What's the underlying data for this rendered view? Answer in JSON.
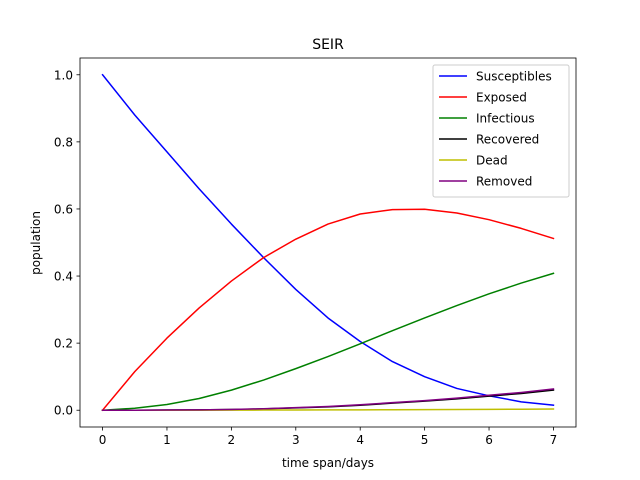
{
  "chart_data": {
    "type": "line",
    "title": "SEIR",
    "xlabel": "time span/days",
    "ylabel": "population",
    "xlim": [
      -0.35,
      7.35
    ],
    "ylim": [
      -0.05,
      1.05
    ],
    "xticks": [
      0,
      1,
      2,
      3,
      4,
      5,
      6,
      7
    ],
    "yticks": [
      0.0,
      0.2,
      0.4,
      0.6,
      0.8,
      1.0
    ],
    "xtick_labels": [
      "0",
      "1",
      "2",
      "3",
      "4",
      "5",
      "6",
      "7"
    ],
    "ytick_labels": [
      "0.0",
      "0.2",
      "0.4",
      "0.6",
      "0.8",
      "1.0"
    ],
    "grid": false,
    "legend_position": "top-right",
    "x": [
      0,
      0.5,
      1,
      1.5,
      2,
      2.5,
      3,
      3.5,
      4,
      4.5,
      5,
      5.5,
      6,
      6.5,
      7
    ],
    "series": [
      {
        "name": "Susceptibles",
        "color": "#0000ff",
        "values": [
          1.0,
          0.88,
          0.77,
          0.66,
          0.555,
          0.455,
          0.36,
          0.275,
          0.205,
          0.145,
          0.1,
          0.065,
          0.043,
          0.025,
          0.015
        ]
      },
      {
        "name": "Exposed",
        "color": "#ff0000",
        "values": [
          0.0,
          0.115,
          0.215,
          0.305,
          0.385,
          0.455,
          0.51,
          0.555,
          0.585,
          0.598,
          0.599,
          0.588,
          0.568,
          0.542,
          0.512
        ]
      },
      {
        "name": "Infectious",
        "color": "#008000",
        "values": [
          0.0,
          0.006,
          0.017,
          0.035,
          0.06,
          0.09,
          0.124,
          0.16,
          0.198,
          0.237,
          0.275,
          0.312,
          0.347,
          0.379,
          0.408
        ]
      },
      {
        "name": "Recovered",
        "color": "#000000",
        "values": [
          0.0,
          0.0,
          0.0005,
          0.001,
          0.002,
          0.004,
          0.007,
          0.01,
          0.015,
          0.021,
          0.027,
          0.034,
          0.042,
          0.05,
          0.06
        ]
      },
      {
        "name": "Dead",
        "color": "#bfbf00",
        "values": [
          0.0,
          0.0,
          0.0,
          0.0,
          0.0003,
          0.0005,
          0.0007,
          0.001,
          0.0012,
          0.0015,
          0.0018,
          0.0022,
          0.0026,
          0.003,
          0.0035
        ]
      },
      {
        "name": "Removed",
        "color": "#800080",
        "values": [
          0.0,
          0.0,
          0.0005,
          0.001,
          0.0023,
          0.0045,
          0.0077,
          0.011,
          0.0162,
          0.0225,
          0.0288,
          0.0362,
          0.0446,
          0.053,
          0.0635
        ]
      }
    ]
  }
}
